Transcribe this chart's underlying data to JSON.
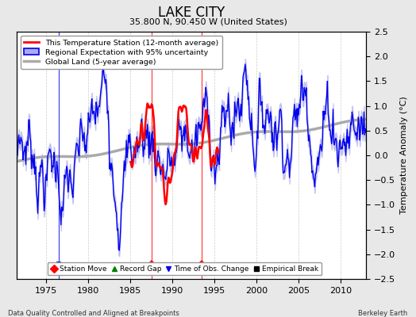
{
  "title": "LAKE CITY",
  "subtitle": "35.800 N, 90.450 W (United States)",
  "ylabel": "Temperature Anomaly (°C)",
  "xlabel_left": "Data Quality Controlled and Aligned at Breakpoints",
  "xlabel_right": "Berkeley Earth",
  "ylim": [
    -2.5,
    2.5
  ],
  "xlim": [
    1971.5,
    2013
  ],
  "xticks": [
    1975,
    1980,
    1985,
    1990,
    1995,
    2000,
    2005,
    2010
  ],
  "yticks_right": [
    -2.5,
    -2,
    -1.5,
    -1,
    -0.5,
    0,
    0.5,
    1,
    1.5,
    2,
    2.5
  ],
  "station_move_years": [
    1987.5,
    1993.5
  ],
  "obs_change_years": [
    1976.5
  ],
  "station_color": "#FF0000",
  "regional_color": "#0000EE",
  "regional_fill_color": "#AAAAEE",
  "global_color": "#AAAAAA",
  "background_color": "#E8E8E8",
  "plot_bg_color": "#FFFFFF",
  "grid_color": "#CCCCCC",
  "legend_items": [
    {
      "label": "This Temperature Station (12-month average)",
      "color": "#FF0000"
    },
    {
      "label": "Regional Expectation with 95% uncertainty",
      "color": "#0000EE"
    },
    {
      "label": "Global Land (5-year average)",
      "color": "#AAAAAA"
    }
  ],
  "bottom_legend": [
    {
      "label": "Station Move",
      "marker": "D",
      "color": "#FF0000"
    },
    {
      "label": "Record Gap",
      "marker": "^",
      "color": "#008000"
    },
    {
      "label": "Time of Obs. Change",
      "marker": "v",
      "color": "#0000EE"
    },
    {
      "label": "Empirical Break",
      "marker": "s",
      "color": "#000000"
    }
  ]
}
